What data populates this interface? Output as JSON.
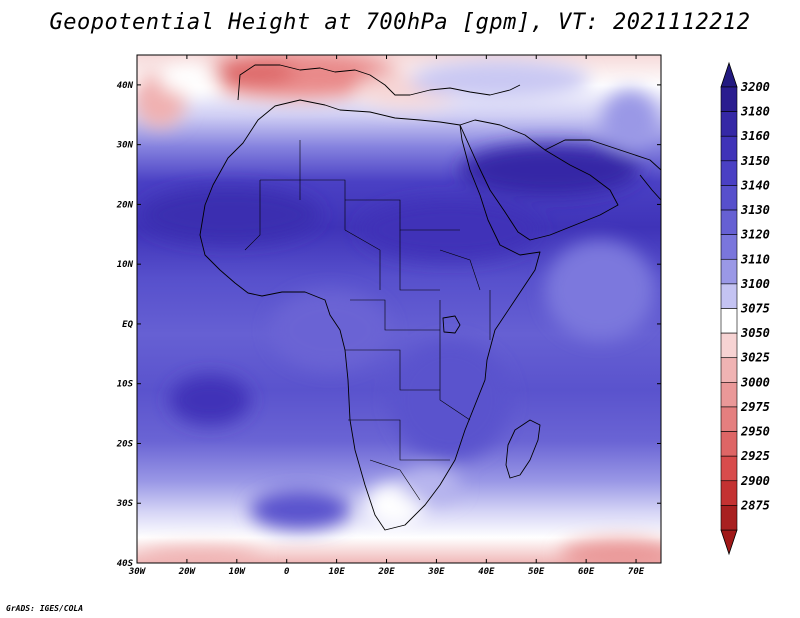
{
  "title": "Geopotential Height at 700hPa [gpm], VT: 2021112212",
  "credit": "GrADS: IGES/COLA",
  "map": {
    "lon_range": [
      -30,
      75
    ],
    "lat_range": [
      -40,
      45
    ],
    "lon_ticks": [
      {
        "value": -30,
        "label": "30W"
      },
      {
        "value": -20,
        "label": "20W"
      },
      {
        "value": -10,
        "label": "10W"
      },
      {
        "value": 0,
        "label": "0"
      },
      {
        "value": 10,
        "label": "10E"
      },
      {
        "value": 20,
        "label": "20E"
      },
      {
        "value": 30,
        "label": "30E"
      },
      {
        "value": 40,
        "label": "40E"
      },
      {
        "value": 50,
        "label": "50E"
      },
      {
        "value": 60,
        "label": "60E"
      },
      {
        "value": 70,
        "label": "70E"
      }
    ],
    "lat_ticks": [
      {
        "value": 40,
        "label": "40N"
      },
      {
        "value": 30,
        "label": "30N"
      },
      {
        "value": 20,
        "label": "20N"
      },
      {
        "value": 10,
        "label": "10N"
      },
      {
        "value": 0,
        "label": "EQ"
      },
      {
        "value": -10,
        "label": "10S"
      },
      {
        "value": -20,
        "label": "20S"
      },
      {
        "value": -30,
        "label": "30S"
      },
      {
        "value": -40,
        "label": "40S"
      }
    ]
  },
  "colorbar": {
    "levels": [
      {
        "label": "3200",
        "color": "#2a1d8f"
      },
      {
        "label": "3180",
        "color": "#3528a6"
      },
      {
        "label": "3160",
        "color": "#3f33b8"
      },
      {
        "label": "3150",
        "color": "#4a40c4"
      },
      {
        "label": "3140",
        "color": "#5750cc"
      },
      {
        "label": "3130",
        "color": "#6660d3"
      },
      {
        "label": "3120",
        "color": "#7a76dc"
      },
      {
        "label": "3110",
        "color": "#9a98e6"
      },
      {
        "label": "3100",
        "color": "#c4c3f2"
      },
      {
        "label": "3075",
        "color": "#ffffff"
      },
      {
        "label": "3050",
        "color": "#f7d3d3"
      },
      {
        "label": "3025",
        "color": "#f0b3b3"
      },
      {
        "label": "3000",
        "color": "#ea9898"
      },
      {
        "label": "2975",
        "color": "#e47f7f"
      },
      {
        "label": "2950",
        "color": "#de6666"
      },
      {
        "label": "2925",
        "color": "#d84c4c"
      },
      {
        "label": "2900",
        "color": "#c43232"
      },
      {
        "label": "2875",
        "color": "#a82020"
      }
    ],
    "top_arrow_color": "#231a80",
    "bottom_arrow_color": "#a01818"
  }
}
